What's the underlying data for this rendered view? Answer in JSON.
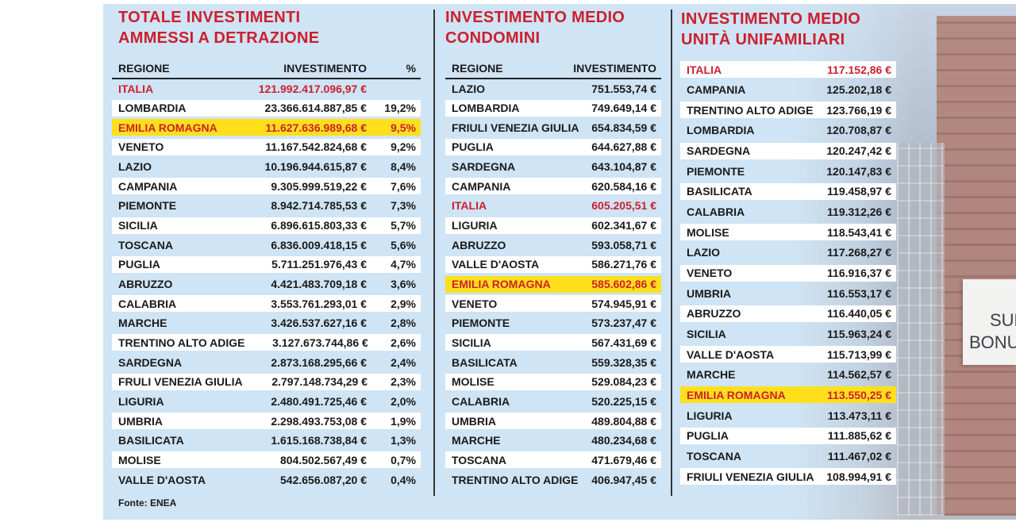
{
  "colors": {
    "title": "#cc1f2d",
    "highlight": "#ffe01b",
    "panel": "#cfe4f4"
  },
  "table1": {
    "title_line1": "TOTALE INVESTIMENTI",
    "title_line2": "AMMESSI A DETRAZIONE",
    "headers": {
      "region": "REGIONE",
      "investment": "INVESTIMENTO",
      "percent": "%"
    },
    "rows": [
      {
        "region": "ITALIA",
        "value": "121.992.417.096,97 €",
        "pct": "",
        "style": "total"
      },
      {
        "region": "LOMBARDIA",
        "value": "23.366.614.887,85 €",
        "pct": "19,2%"
      },
      {
        "region": "EMILIA ROMAGNA",
        "value": "11.627.636.989,68 €",
        "pct": "9,5%",
        "style": "highlight"
      },
      {
        "region": "VENETO",
        "value": "11.167.542.824,68 €",
        "pct": "9,2%"
      },
      {
        "region": "LAZIO",
        "value": "10.196.944.615,87 €",
        "pct": "8,4%"
      },
      {
        "region": "CAMPANIA",
        "value": "9.305.999.519,22 €",
        "pct": "7,6%"
      },
      {
        "region": "PIEMONTE",
        "value": "8.942.714.785,53 €",
        "pct": "7,3%"
      },
      {
        "region": "SICILIA",
        "value": "6.896.615.803,33 €",
        "pct": "5,7%"
      },
      {
        "region": "TOSCANA",
        "value": "6.836.009.418,15 €",
        "pct": "5,6%"
      },
      {
        "region": "PUGLIA",
        "value": "5.711.251.976,43 €",
        "pct": "4,7%"
      },
      {
        "region": "ABRUZZO",
        "value": "4.421.483.709,18 €",
        "pct": "3,6%"
      },
      {
        "region": "CALABRIA",
        "value": "3.553.761.293,01 €",
        "pct": "2,9%"
      },
      {
        "region": "MARCHE",
        "value": "3.426.537.627,16 €",
        "pct": "2,8%"
      },
      {
        "region": "TRENTINO ALTO ADIGE",
        "value": "3.127.673.744,86 €",
        "pct": "2,6%"
      },
      {
        "region": "SARDEGNA",
        "value": "2.873.168.295,66 €",
        "pct": "2,4%"
      },
      {
        "region": "FRULI VENEZIA GIULIA",
        "value": "2.797.148.734,29 €",
        "pct": "2,3%"
      },
      {
        "region": "LIGURIA",
        "value": "2.480.491.725,46 €",
        "pct": "2,0%"
      },
      {
        "region": "UMBRIA",
        "value": "2.298.493.753,08 €",
        "pct": "1,9%"
      },
      {
        "region": "BASILICATA",
        "value": "1.615.168.738,84 €",
        "pct": "1,3%"
      },
      {
        "region": "MOLISE",
        "value": "804.502.567,49 €",
        "pct": "0,7%"
      },
      {
        "region": "VALLE D'AOSTA",
        "value": "542.656.087,20 €",
        "pct": "0,4%"
      }
    ],
    "source": "Fonte: ENEA"
  },
  "table2": {
    "title_line1": "INVESTIMENTO MEDIO",
    "title_line2": "CONDOMINI",
    "headers": {
      "region": "REGIONE",
      "investment": "INVESTIMENTO"
    },
    "rows": [
      {
        "region": "LAZIO",
        "value": "751.553,74 €"
      },
      {
        "region": "LOMBARDIA",
        "value": "749.649,14 €"
      },
      {
        "region": "FRIULI VENEZIA GIULIA",
        "value": "654.834,59 €"
      },
      {
        "region": "PUGLIA",
        "value": "644.627,88 €"
      },
      {
        "region": "SARDEGNA",
        "value": "643.104,87 €"
      },
      {
        "region": "CAMPANIA",
        "value": "620.584,16 €"
      },
      {
        "region": "ITALIA",
        "value": "605.205,51 €",
        "style": "total"
      },
      {
        "region": "LIGURIA",
        "value": "602.341,67 €"
      },
      {
        "region": "ABRUZZO",
        "value": "593.058,71 €"
      },
      {
        "region": "VALLE D'AOSTA",
        "value": "586.271,76 €"
      },
      {
        "region": "EMILIA ROMAGNA",
        "value": "585.602,86 €",
        "style": "highlight"
      },
      {
        "region": "VENETO",
        "value": "574.945,91 €"
      },
      {
        "region": "PIEMONTE",
        "value": "573.237,47 €"
      },
      {
        "region": "SICILIA",
        "value": "567.431,69 €"
      },
      {
        "region": "BASILICATA",
        "value": "559.328,35 €"
      },
      {
        "region": "MOLISE",
        "value": "529.084,23 €"
      },
      {
        "region": "CALABRIA",
        "value": "520.225,15 €"
      },
      {
        "region": "UMBRIA",
        "value": "489.804,88 €"
      },
      {
        "region": "MARCHE",
        "value": "480.234,68 €"
      },
      {
        "region": "TOSCANA",
        "value": "471.679,46 €"
      },
      {
        "region": "TRENTINO ALTO ADIGE",
        "value": "406.947,45 €"
      }
    ]
  },
  "table3": {
    "title_line1": "INVESTIMENTO MEDIO",
    "title_line2": "UNITÀ UNIFAMILIARI",
    "rows": [
      {
        "region": "ITALIA",
        "value": "117.152,86 €",
        "style": "total"
      },
      {
        "region": "CAMPANIA",
        "value": "125.202,18 €"
      },
      {
        "region": "TRENTINO ALTO ADIGE",
        "value": "123.766,19 €"
      },
      {
        "region": "LOMBARDIA",
        "value": "120.708,87 €"
      },
      {
        "region": "SARDEGNA",
        "value": "120.247,42 €"
      },
      {
        "region": "PIEMONTE",
        "value": "120.147,83 €"
      },
      {
        "region": "BASILICATA",
        "value": "119.458,97 €"
      },
      {
        "region": "CALABRIA",
        "value": "119.312,26 €"
      },
      {
        "region": "MOLISE",
        "value": "118.543,41 €"
      },
      {
        "region": "LAZIO",
        "value": "117.268,27 €"
      },
      {
        "region": "VENETO",
        "value": "116.916,37 €"
      },
      {
        "region": "UMBRIA",
        "value": "116.553,17 €"
      },
      {
        "region": "ABRUZZO",
        "value": "116.440,05 €"
      },
      {
        "region": "SICILIA",
        "value": "115.963,24 €"
      },
      {
        "region": "VALLE D'AOSTA",
        "value": "115.713,99 €"
      },
      {
        "region": "MARCHE",
        "value": "114.562,57 €"
      },
      {
        "region": "EMILIA ROMAGNA",
        "value": "113.550,25 €",
        "style": "highlight"
      },
      {
        "region": "LIGURIA",
        "value": "113.473,11 €"
      },
      {
        "region": "PUGLIA",
        "value": "111.885,62 €"
      },
      {
        "region": "TOSCANA",
        "value": "111.467,02 €"
      },
      {
        "region": "FRIULI VENEZIA GIULIA",
        "value": "108.994,91 €"
      }
    ]
  },
  "photo": {
    "banner_line1": "SUP",
    "banner_line2": "BONUS"
  }
}
